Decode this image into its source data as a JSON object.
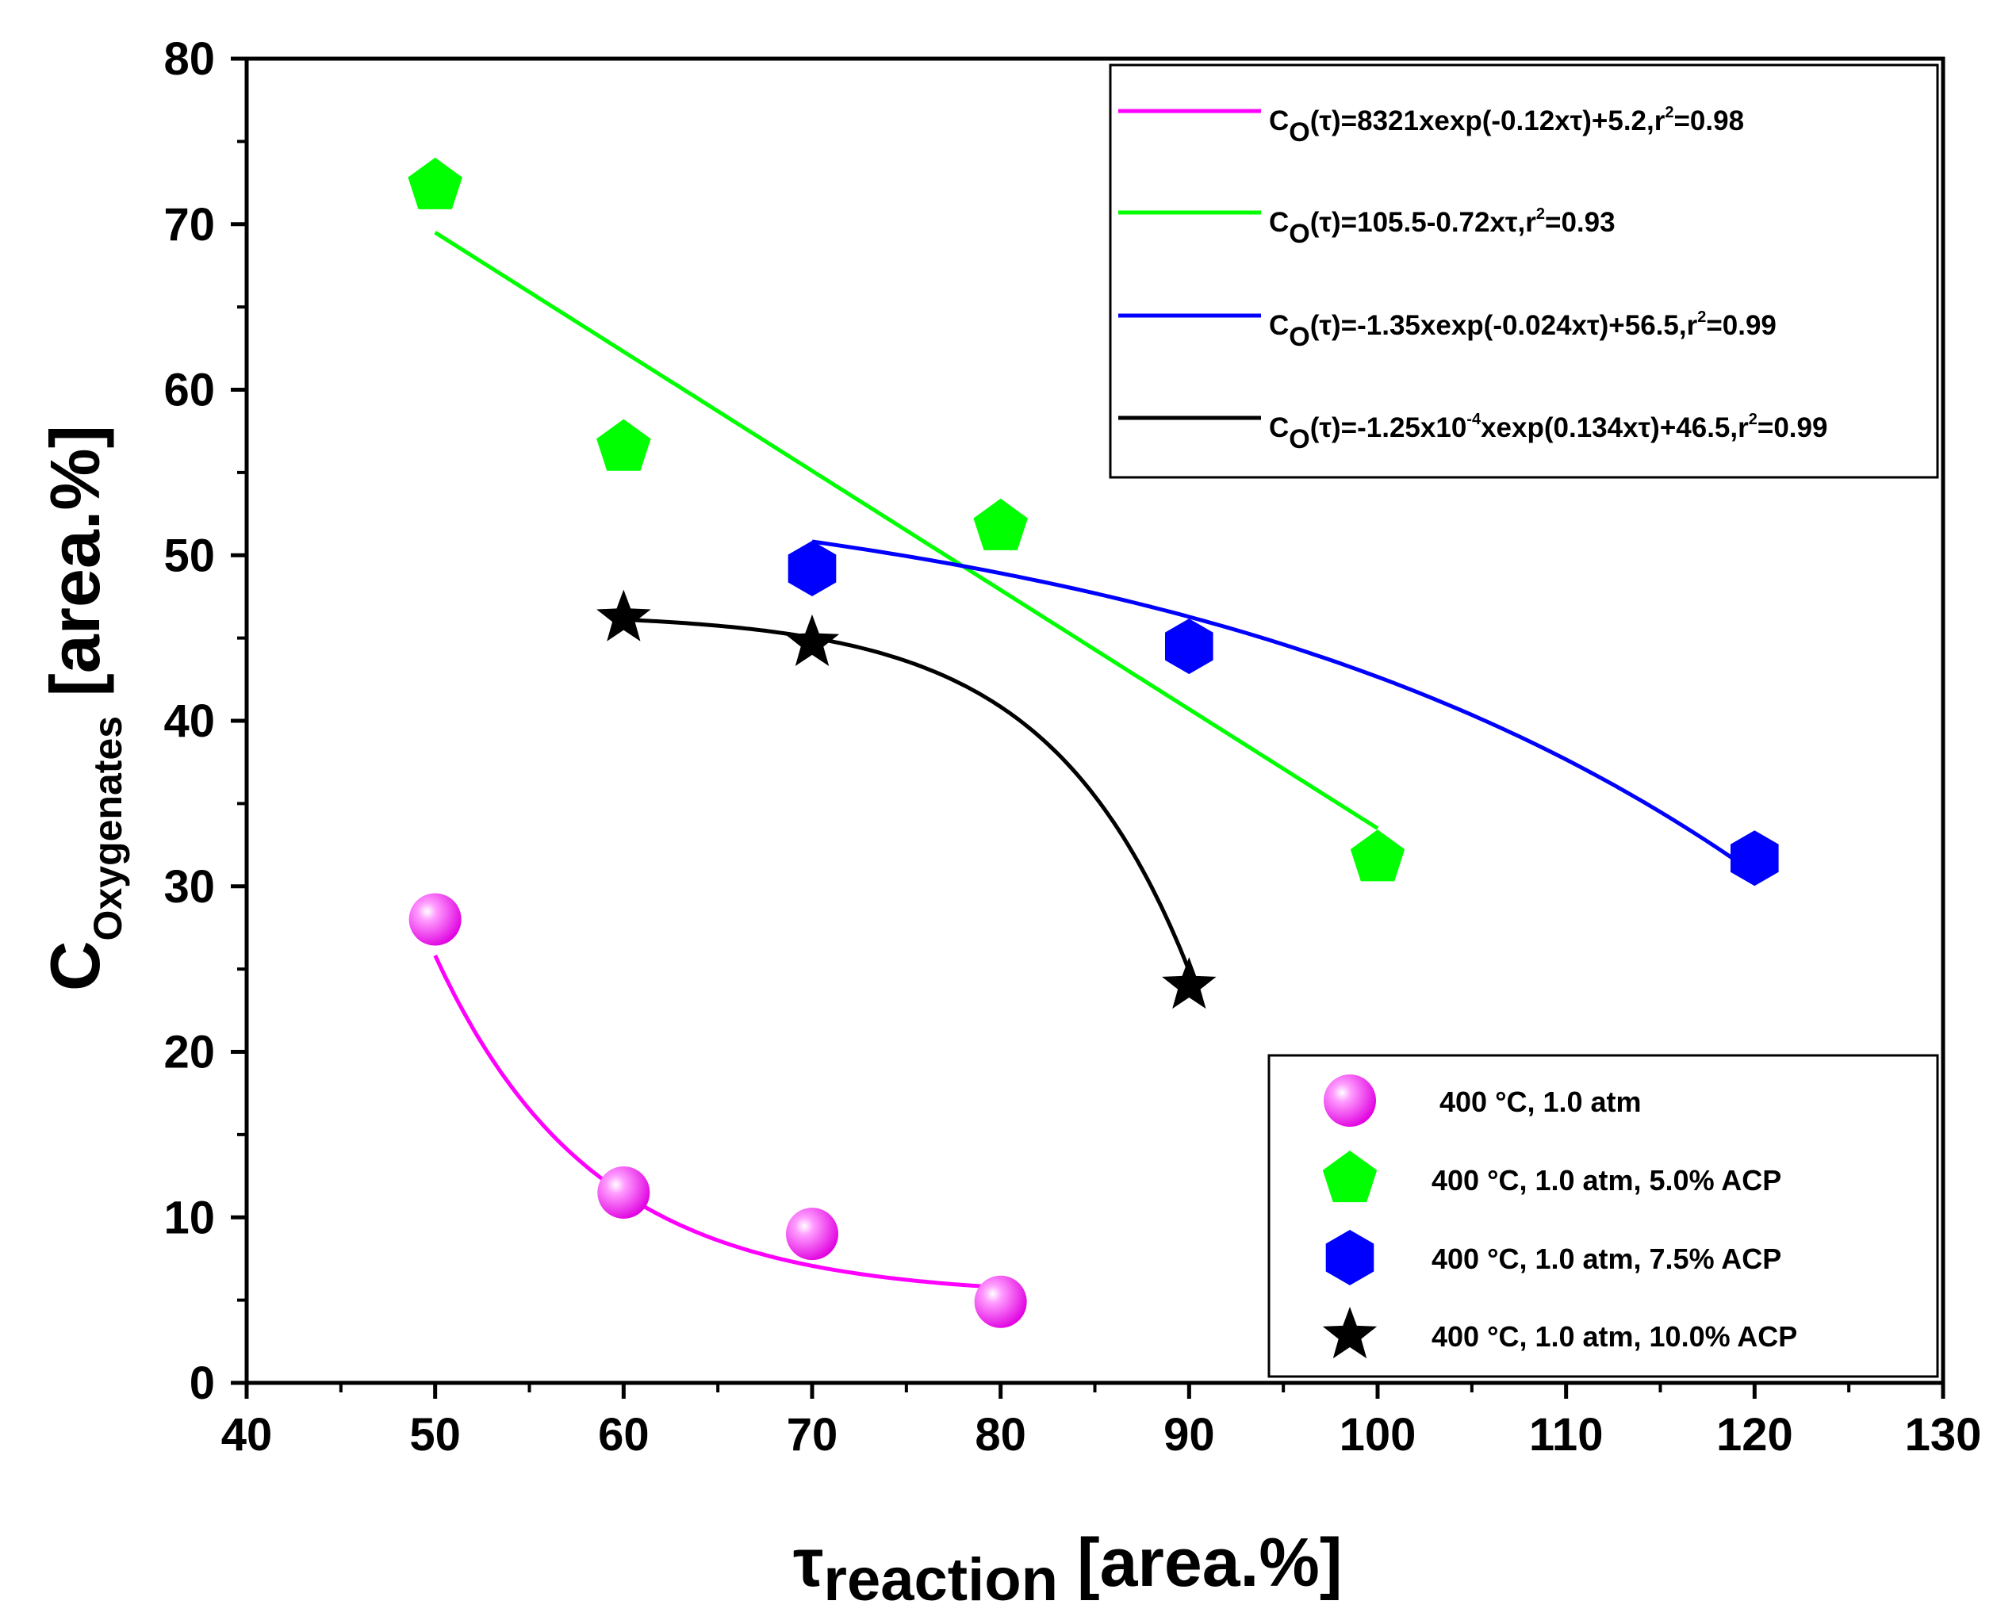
{
  "chart_data": {
    "type": "scatter",
    "title": "",
    "xlabel": {
      "symbol": "τ",
      "subscript": "reaction",
      "unit": "[area.%]"
    },
    "ylabel": {
      "symbol": "C",
      "subscript": "Oxygenates",
      "unit": "[area.%]"
    },
    "xlim": [
      40,
      130
    ],
    "ylim": [
      0,
      80
    ],
    "xticks": [
      40,
      50,
      60,
      70,
      80,
      90,
      100,
      110,
      120,
      130
    ],
    "yticks": [
      0,
      10,
      20,
      30,
      40,
      50,
      60,
      70,
      80
    ],
    "grid": false,
    "series": [
      {
        "name": "400 °C, 1.0 atm",
        "marker": "sphere",
        "color": "#ff00ff",
        "x": [
          50,
          60,
          70,
          80
        ],
        "y": [
          28.0,
          11.5,
          9.0,
          4.9
        ]
      },
      {
        "name": "400 °C, 1.0 atm, 5.0% ACP",
        "marker": "pentagon",
        "color": "#00ff00",
        "x": [
          50,
          60,
          80,
          100
        ],
        "y": [
          72.3,
          56.5,
          51.7,
          31.7
        ]
      },
      {
        "name": "400 °C, 1.0 atm, 7.5% ACP",
        "marker": "hexagon",
        "color": "#0000ff",
        "x": [
          70,
          90,
          120
        ],
        "y": [
          49.2,
          44.5,
          31.7
        ]
      },
      {
        "name": "400 °C, 1.0 atm, 10.0% ACP",
        "marker": "star",
        "color": "#000000",
        "x": [
          60,
          70,
          90
        ],
        "y": [
          46.2,
          44.7,
          24.0
        ]
      }
    ],
    "fits": [
      {
        "color": "#ff00ff",
        "x_range": [
          50,
          80
        ],
        "label": "8321xexp(-0.12xτ)+5.2,r",
        "sup": "2",
        "tail": "=0.98"
      },
      {
        "color": "#00ff00",
        "x_range": [
          50,
          100
        ],
        "label": "105.5-0.72xτ,r",
        "sup": "2",
        "tail": "=0.93"
      },
      {
        "color": "#0000ff",
        "x_range": [
          70,
          120
        ],
        "label": "-1.35xexp(-0.024xτ)+56.5,r",
        "sup": "2",
        "tail": "=0.99"
      },
      {
        "color": "#000000",
        "x_range": [
          60,
          90
        ],
        "label": "-1.25x10",
        "sup_exp": "-4",
        "label2": "xexp(0.134xτ)+46.5,r",
        "sup": "2",
        "tail": "=0.99"
      }
    ],
    "fit_prefix": {
      "c": "C",
      "sub": "O",
      "arg": "(τ)="
    }
  }
}
